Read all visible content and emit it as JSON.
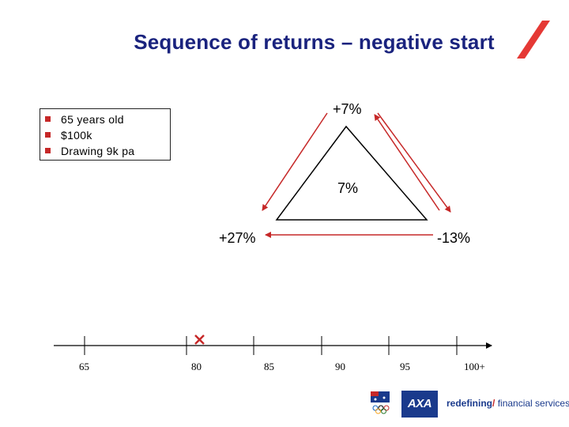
{
  "title": "Sequence of returns – negative start",
  "info_box": {
    "items": [
      "65 years old",
      "$100k",
      "Drawing 9k pa"
    ]
  },
  "triangle": {
    "top_label": "+7%",
    "center_label": "7%",
    "left_label": "+27%",
    "right_label": "-13%"
  },
  "timeline": {
    "ticks": [
      "65",
      "80",
      "85",
      "90",
      "95",
      "100+"
    ],
    "marker_at": "80"
  },
  "footer": {
    "tagline_bold": "redefining",
    "tagline_slash": "/",
    "tagline_rest": " financial services",
    "axa_logo": "AXA"
  },
  "colors": {
    "title": "#1a237e",
    "accent_red": "#c62828",
    "brand_blue": "#1a3a8c"
  }
}
